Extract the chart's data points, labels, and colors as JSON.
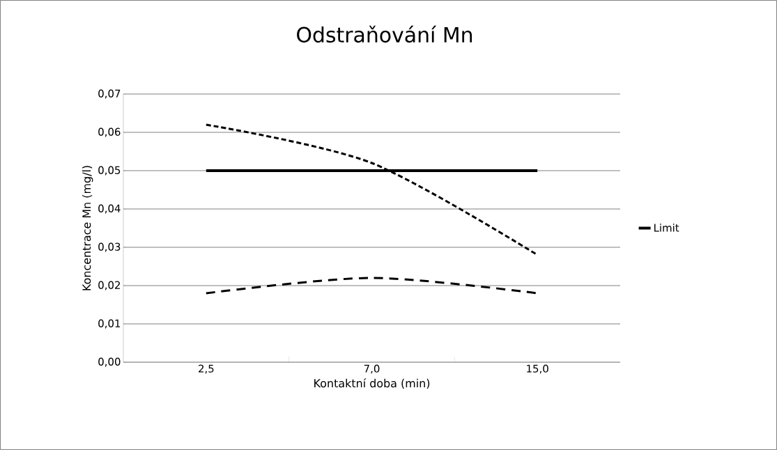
{
  "chart_data": {
    "type": "line",
    "title": "Odstraňování Mn",
    "xlabel": "Kontaktní doba (min)",
    "ylabel": "Koncentrace Mn (mg/l)",
    "categories": [
      "2,5",
      "7,0",
      "15,0"
    ],
    "series": [
      {
        "color": "#000000",
        "line_style": "dashed",
        "values": [
          0.062,
          0.052,
          0.028
        ]
      },
      {
        "color": "#000000",
        "line_style": "dashed",
        "values": [
          0.018,
          0.022,
          0.018
        ]
      },
      {
        "name": "Limit",
        "color": "#000000",
        "line_style": "solid",
        "values": [
          0.05,
          0.05,
          0.05
        ]
      }
    ],
    "ylim": [
      0,
      0.07
    ],
    "yticks": [
      {
        "value": 0,
        "label": "0,00"
      },
      {
        "value": 0.01,
        "label": "0,01"
      },
      {
        "value": 0.02,
        "label": "0,02"
      },
      {
        "value": 0.03,
        "label": "0,03"
      },
      {
        "value": 0.04,
        "label": "0,04"
      },
      {
        "value": 0.05,
        "label": "0,05"
      },
      {
        "value": 0.06,
        "label": "0,06"
      },
      {
        "value": 0.07,
        "label": "0,07"
      }
    ],
    "grid": "y",
    "legend": "right",
    "marker": "none"
  }
}
